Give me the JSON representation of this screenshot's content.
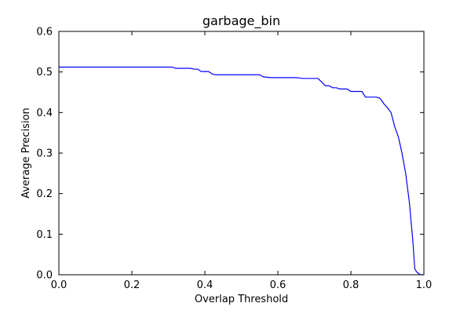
{
  "chart_data": {
    "type": "line",
    "title": "garbage_bin",
    "xlabel": "Overlap Threshold",
    "ylabel": "Average Precision",
    "xlim": [
      0.0,
      1.0
    ],
    "ylim": [
      0.0,
      0.6
    ],
    "xticks": [
      "0.0",
      "0.2",
      "0.4",
      "0.6",
      "0.8",
      "1.0"
    ],
    "yticks": [
      "0.0",
      "0.1",
      "0.2",
      "0.3",
      "0.4",
      "0.5",
      "0.6"
    ],
    "grid": false,
    "legend": "none",
    "line_color": "#0000ff",
    "series": [
      {
        "x": [
          0.0,
          0.31,
          0.32,
          0.36,
          0.37,
          0.38,
          0.39,
          0.41,
          0.42,
          0.43,
          0.55,
          0.56,
          0.58,
          0.65,
          0.67,
          0.71,
          0.72,
          0.73,
          0.74,
          0.75,
          0.76,
          0.77,
          0.78,
          0.79,
          0.8,
          0.81,
          0.83,
          0.84,
          0.85,
          0.87,
          0.88,
          0.89,
          0.9,
          0.91,
          0.92,
          0.93,
          0.94,
          0.95,
          0.96,
          0.97,
          0.975,
          0.98,
          0.99,
          1.0
        ],
        "y": [
          0.512,
          0.512,
          0.509,
          0.509,
          0.507,
          0.507,
          0.501,
          0.501,
          0.495,
          0.493,
          0.493,
          0.488,
          0.486,
          0.486,
          0.484,
          0.484,
          0.475,
          0.466,
          0.466,
          0.461,
          0.461,
          0.458,
          0.458,
          0.458,
          0.452,
          0.452,
          0.452,
          0.438,
          0.438,
          0.438,
          0.435,
          0.422,
          0.412,
          0.4,
          0.365,
          0.34,
          0.3,
          0.25,
          0.18,
          0.08,
          0.015,
          0.007,
          0.0,
          0.0
        ]
      }
    ]
  }
}
